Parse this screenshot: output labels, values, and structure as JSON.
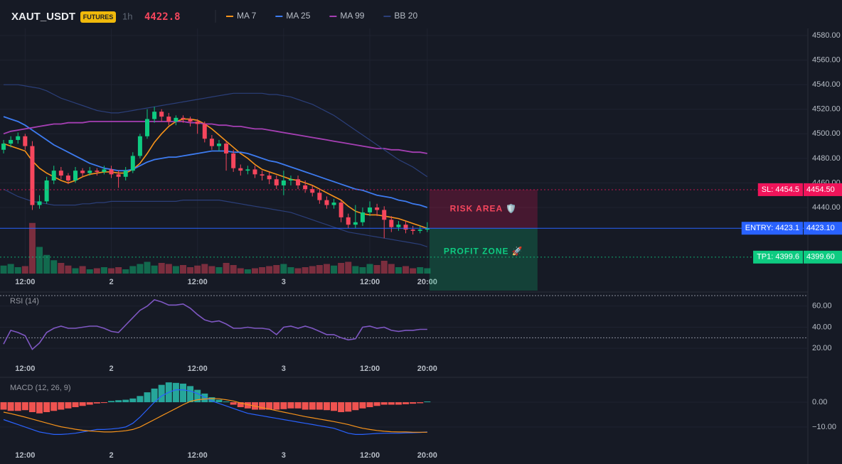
{
  "header": {
    "symbol": "XAUT_USDT",
    "badge": "FUTURES",
    "interval": "1h",
    "last_price": 4422.8
  },
  "chart_data": [
    {
      "type": "candlestick",
      "xlim": [
        -0.5,
        112
      ],
      "xticks": [
        {
          "value": 3,
          "label": "12:00"
        },
        {
          "value": 15,
          "label": "2"
        },
        {
          "value": 27,
          "label": "12:00"
        },
        {
          "value": 39,
          "label": "3"
        },
        {
          "value": 51,
          "label": "12:00"
        },
        {
          "value": 59,
          "label": "20:00"
        }
      ],
      "ylim": [
        4386.2,
        4585.8
      ],
      "yticks": [
        {
          "value": 4440,
          "label": "4440.00"
        },
        {
          "value": 4460,
          "label": "4460.00"
        },
        {
          "value": 4480,
          "label": "4480.00"
        },
        {
          "value": 4500,
          "label": "4500.00"
        },
        {
          "value": 4520,
          "label": "4520.00"
        },
        {
          "value": 4540,
          "label": "4540.00"
        },
        {
          "value": 4560,
          "label": "4560.00"
        },
        {
          "value": 4580,
          "label": "4580.00"
        }
      ],
      "up_color": "#0ecb81",
      "down_color": "#f6465d",
      "open": [
        4487,
        4492,
        4495,
        4498,
        4490,
        4442,
        4445,
        4462,
        4470,
        4466,
        4462,
        4470,
        4468,
        4470,
        4469,
        4471,
        4467,
        4465,
        4470,
        4482,
        4498,
        4512,
        4518,
        4514,
        4510,
        4513,
        4512,
        4510,
        4508,
        4496,
        4490,
        4492,
        4484,
        4472,
        4470,
        4471,
        4467,
        4466,
        4463,
        4458,
        4462,
        4463,
        4458,
        4455,
        4452,
        4446,
        4442,
        4444,
        4432,
        4426,
        4428,
        4436,
        4440,
        4438,
        4430,
        4424,
        4426,
        4422,
        4421,
        4422
      ],
      "high": [
        4495,
        4498,
        4501,
        4500,
        4494,
        4450,
        4465,
        4474,
        4473,
        4468,
        4473,
        4472,
        4473,
        4472,
        4474,
        4474,
        4470,
        4473,
        4485,
        4500,
        4520,
        4522,
        4520,
        4517,
        4515,
        4515,
        4514,
        4512,
        4510,
        4499,
        4495,
        4494,
        4487,
        4475,
        4474,
        4474,
        4470,
        4469,
        4466,
        4470,
        4466,
        4466,
        4462,
        4458,
        4455,
        4449,
        4447,
        4446,
        4435,
        4442,
        4440,
        4445,
        4443,
        4441,
        4433,
        4429,
        4429,
        4425,
        4425,
        4428
      ],
      "low": [
        4484,
        4489,
        4492,
        4487,
        4438,
        4439,
        4443,
        4459,
        4463,
        4459,
        4460,
        4465,
        4466,
        4466,
        4467,
        4464,
        4456,
        4462,
        4468,
        4480,
        4496,
        4509,
        4510,
        4507,
        4507,
        4509,
        4506,
        4500,
        4493,
        4487,
        4486,
        4470,
        4469,
        4466,
        4467,
        4464,
        4462,
        4459,
        4455,
        4450,
        4458,
        4455,
        4452,
        4449,
        4443,
        4439,
        4439,
        4428,
        4423,
        4423,
        4425,
        4433,
        4433,
        4415,
        4420,
        4421,
        4419,
        4418,
        4419,
        4420
      ],
      "close": [
        4492,
        4495,
        4498,
        4490,
        4442,
        4445,
        4462,
        4470,
        4466,
        4462,
        4470,
        4468,
        4470,
        4469,
        4471,
        4467,
        4465,
        4470,
        4482,
        4498,
        4512,
        4518,
        4514,
        4510,
        4513,
        4512,
        4510,
        4508,
        4496,
        4490,
        4492,
        4484,
        4472,
        4470,
        4471,
        4467,
        4466,
        4463,
        4458,
        4462,
        4463,
        4458,
        4455,
        4452,
        4446,
        4442,
        4444,
        4432,
        4426,
        4428,
        4436,
        4440,
        4438,
        4430,
        4424,
        4426,
        4422,
        4421,
        4422,
        4423
      ],
      "volume": {
        "vlim": [
          0,
          100
        ],
        "values": [
          15,
          18,
          12,
          14,
          95,
          50,
          35,
          25,
          20,
          15,
          10,
          14,
          8,
          10,
          12,
          10,
          12,
          8,
          14,
          18,
          22,
          15,
          20,
          18,
          14,
          16,
          12,
          15,
          18,
          14,
          12,
          20,
          16,
          10,
          8,
          10,
          12,
          14,
          16,
          18,
          12,
          10,
          12,
          14,
          16,
          18,
          15,
          20,
          22,
          14,
          12,
          18,
          16,
          24,
          18,
          12,
          14,
          10,
          12,
          10
        ]
      },
      "series": [
        {
          "name": "MA 7",
          "color": "#f7931a",
          "values": [
            4492,
            4490,
            4488,
            4486,
            4478,
            4472,
            4468,
            4465,
            4462,
            4460,
            4462,
            4465,
            4467,
            4468,
            4469,
            4469,
            4468,
            4468,
            4471,
            4476,
            4484,
            4493,
            4500,
            4506,
            4510,
            4512,
            4512,
            4511,
            4508,
            4504,
            4499,
            4494,
            4489,
            4484,
            4480,
            4475,
            4471,
            4469,
            4467,
            4465,
            4463,
            4462,
            4460,
            4458,
            4455,
            4452,
            4449,
            4446,
            4441,
            4437,
            4435,
            4434,
            4434,
            4433,
            4432,
            4431,
            4429,
            4427,
            4425,
            4423
          ]
        },
        {
          "name": "MA 25",
          "color": "#3d7bf0",
          "values": [
            4514,
            4512,
            4510,
            4507,
            4503,
            4499,
            4495,
            4491,
            4488,
            4485,
            4482,
            4479,
            4476,
            4474,
            4472,
            4471,
            4470,
            4470,
            4471,
            4474,
            4477,
            4479,
            4480,
            4481,
            4481,
            4482,
            4483,
            4484,
            4485,
            4486,
            4486,
            4486,
            4485,
            4485,
            4484,
            4482,
            4480,
            4478,
            4477,
            4475,
            4473,
            4471,
            4469,
            4467,
            4465,
            4463,
            4461,
            4459,
            4457,
            4455,
            4454,
            4452,
            4450,
            4449,
            4448,
            4446,
            4445,
            4443,
            4442,
            4440
          ]
        },
        {
          "name": "MA 99",
          "color": "#a53fb3",
          "values": [
            4500,
            4502,
            4503,
            4504,
            4505,
            4506,
            4507,
            4508,
            4508,
            4509,
            4509,
            4509,
            4510,
            4510,
            4510,
            4510,
            4510,
            4510,
            4510,
            4510,
            4510,
            4510,
            4510,
            4510,
            4510,
            4510,
            4509,
            4509,
            4508,
            4508,
            4507,
            4507,
            4506,
            4506,
            4505,
            4504,
            4504,
            4503,
            4502,
            4501,
            4500,
            4499,
            4498,
            4497,
            4496,
            4495,
            4494,
            4493,
            4492,
            4491,
            4490,
            4489,
            4488,
            4488,
            4487,
            4487,
            4486,
            4485,
            4485,
            4484
          ]
        },
        {
          "name": "BB 20",
          "color": "#2b3f7a",
          "upper": [
            4540,
            4540,
            4540,
            4539,
            4538,
            4537,
            4535,
            4532,
            4529,
            4527,
            4525,
            4523,
            4521,
            4519,
            4518,
            4517,
            4517,
            4518,
            4519,
            4520,
            4521,
            4522,
            4523,
            4524,
            4525,
            4526,
            4527,
            4528,
            4529,
            4530,
            4531,
            4532,
            4533,
            4533,
            4533,
            4533,
            4533,
            4532,
            4532,
            4531,
            4530,
            4528,
            4526,
            4524,
            4521,
            4518,
            4515,
            4511,
            4507,
            4503,
            4499,
            4495,
            4491,
            4487,
            4483,
            4479,
            4476,
            4473,
            4469,
            4465
          ],
          "lower": [
            4455,
            4452,
            4449,
            4447,
            4445,
            4444,
            4443,
            4442,
            4442,
            4442,
            4442,
            4443,
            4443,
            4444,
            4444,
            4445,
            4445,
            4445,
            4445,
            4445,
            4445,
            4445,
            4445,
            4445,
            4445,
            4446,
            4446,
            4446,
            4446,
            4446,
            4446,
            4445,
            4444,
            4443,
            4442,
            4441,
            4440,
            4439,
            4438,
            4437,
            4436,
            4434,
            4432,
            4430,
            4428,
            4426,
            4424,
            4422,
            4420,
            4419,
            4418,
            4417,
            4416,
            4415,
            4414,
            4413,
            4412,
            4411,
            4410,
            4408
          ]
        }
      ],
      "levels": [
        {
          "label": "SL: 4454.5",
          "value": 4454.5,
          "axis_label": "4454.50",
          "color": "#f0145a",
          "style": "dotted"
        },
        {
          "label": "ENTRY: 4423.1",
          "value": 4423.1,
          "axis_label": "4423.10",
          "color": "#2962ff",
          "style": "solid"
        },
        {
          "label": "TP1: 4399.6",
          "value": 4399.6,
          "axis_label": "4399.60",
          "color": "#0ecb81",
          "style": "dotted"
        }
      ],
      "zones": [
        {
          "label": "RISK AREA 🛡️",
          "from": 4423.1,
          "to": 4454.5,
          "color": "#f0145a",
          "text_color": "#f6465d"
        },
        {
          "label": "PROFIT ZONE 🚀",
          "from": 4423.1,
          "color": "#0ecb81",
          "text_color": "#0ecb81"
        }
      ]
    },
    {
      "type": "line",
      "title": "RSI (14)",
      "color": "#7e57c2",
      "xlim": [
        -0.5,
        112
      ],
      "ylim": [
        10,
        72
      ],
      "levels": [
        30,
        70
      ],
      "yticks": [
        {
          "value": 20,
          "label": "20.00"
        },
        {
          "value": 40,
          "label": "40.00"
        },
        {
          "value": 60,
          "label": "60.00"
        }
      ],
      "values": [
        24,
        37,
        35,
        32,
        19,
        25,
        35,
        39,
        41,
        39,
        39,
        40,
        41,
        41,
        39,
        36,
        35,
        42,
        49,
        56,
        60,
        66,
        64,
        61,
        61,
        62,
        58,
        52,
        47,
        45,
        46,
        43,
        39,
        39,
        40,
        39,
        39,
        38,
        33,
        40,
        41,
        39,
        41,
        39,
        36,
        33,
        33,
        30,
        28,
        29,
        40,
        41,
        39,
        40,
        37,
        36,
        37,
        37,
        38,
        38
      ]
    },
    {
      "type": "macd",
      "title": "MACD (12, 26, 9)",
      "xlim": [
        -0.5,
        112
      ],
      "ylim": [
        -16.9,
        8.9
      ],
      "yticks": [
        {
          "value": -10,
          "label": "−10.00"
        },
        {
          "value": 0,
          "label": "0.00"
        }
      ],
      "histogram": {
        "up_color": "#26a69a",
        "down_color": "#ef5350",
        "values": [
          -3,
          -3.5,
          -3.5,
          -3.2,
          -4,
          -4.5,
          -4,
          -3.5,
          -3,
          -2.5,
          -2,
          -1.5,
          -1,
          -0.5,
          -0.3,
          0.5,
          0.8,
          1,
          1.5,
          2.5,
          4,
          5.5,
          7,
          8,
          7.8,
          7.5,
          6.5,
          5,
          3.5,
          2,
          1,
          0.3,
          -1,
          -2,
          -2.5,
          -3,
          -3,
          -3,
          -3,
          -2.8,
          -2.5,
          -2.5,
          -3,
          -3,
          -3,
          -3.2,
          -3.5,
          -4,
          -3.8,
          -3.2,
          -2.5,
          -2,
          -1.5,
          -1,
          -1,
          -1,
          -0.8,
          -0.6,
          -0.4,
          0.3
        ]
      },
      "macd": {
        "color": "#2962ff",
        "values": [
          -7,
          -8,
          -9,
          -10,
          -11,
          -12,
          -12.5,
          -13,
          -13,
          -12.8,
          -12.5,
          -12,
          -11.5,
          -11,
          -11,
          -10.8,
          -10.5,
          -10,
          -8.5,
          -6,
          -3,
          0,
          2.5,
          4,
          5,
          5,
          4.5,
          3.5,
          2,
          0.5,
          -0.5,
          -1.5,
          -2.5,
          -3.5,
          -4.5,
          -5,
          -5.5,
          -6,
          -6.5,
          -7,
          -7.5,
          -8,
          -8.5,
          -9,
          -9.5,
          -10,
          -10.5,
          -11.5,
          -12.5,
          -13,
          -13,
          -12.8,
          -12.6,
          -12.5,
          -12.5,
          -12.5,
          -12.4,
          -12.3,
          -12.2,
          -12
        ]
      },
      "signal": {
        "color": "#f7931a",
        "values": [
          -4,
          -4.6,
          -5.3,
          -6,
          -6.8,
          -7.6,
          -8.4,
          -9.2,
          -9.9,
          -10.4,
          -10.9,
          -11.3,
          -11.6,
          -11.8,
          -12,
          -12,
          -11.8,
          -11.5,
          -11,
          -10,
          -8.5,
          -7,
          -5.5,
          -4,
          -2.5,
          -1,
          0.3,
          1,
          1.3,
          1.5,
          1.4,
          1,
          0.5,
          -0.3,
          -1,
          -1.6,
          -2.2,
          -2.8,
          -3.4,
          -4,
          -4.6,
          -5.2,
          -5.8,
          -6.3,
          -6.8,
          -7.3,
          -7.8,
          -8.4,
          -9,
          -9.8,
          -10.5,
          -11,
          -11.4,
          -11.7,
          -11.9,
          -12,
          -12,
          -12.1,
          -12.1,
          -12.1
        ]
      }
    }
  ]
}
